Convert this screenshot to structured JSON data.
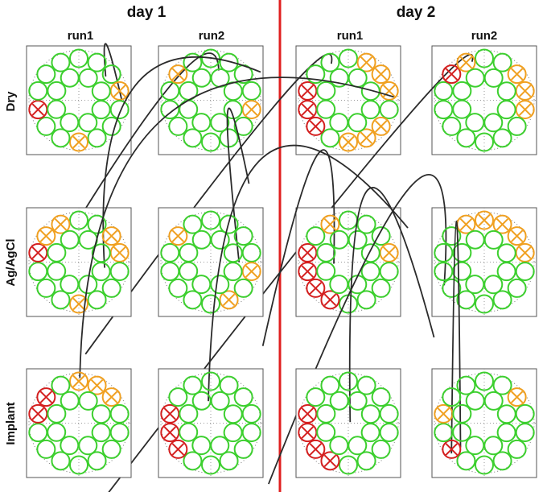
{
  "header": {
    "days": [
      "day 1",
      "day 2"
    ],
    "runs": [
      "run1",
      "run2",
      "run1",
      "run2"
    ]
  },
  "rows": [
    "Dry",
    "Ag/AgCl",
    "Implant"
  ]
}
